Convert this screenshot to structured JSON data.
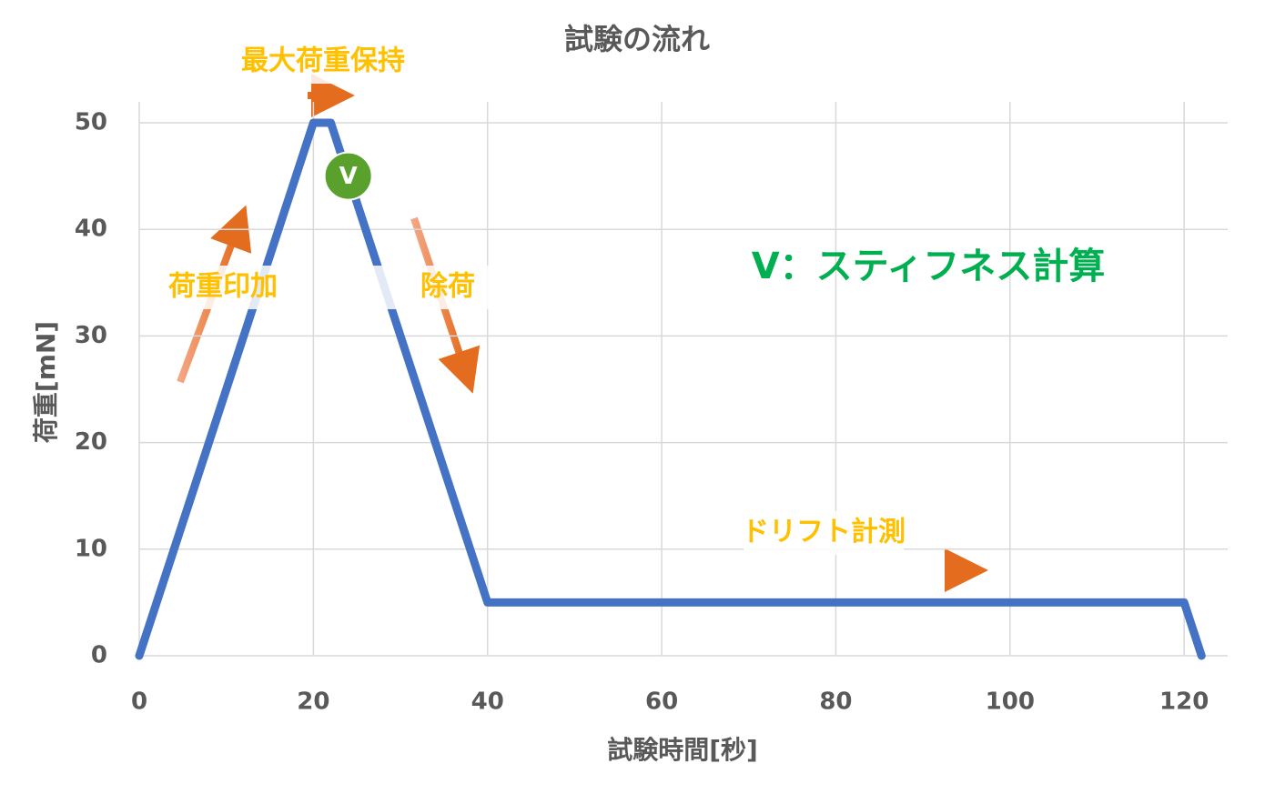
{
  "chart_data": {
    "type": "line",
    "title": "試験の流れ",
    "x_label": "試験時間[秒]",
    "y_label": "荷重[mN]",
    "x": [
      0,
      20,
      22,
      40,
      120,
      122
    ],
    "series": [
      {
        "color": "#4472c4",
        "values": [
          0,
          50,
          50,
          5,
          5,
          0
        ]
      }
    ],
    "xlim": [
      0,
      125
    ],
    "xticks": [
      0,
      20,
      40,
      60,
      80,
      100,
      120
    ],
    "ylim": [
      0,
      50
    ],
    "yticks": [
      0,
      10,
      20,
      30,
      40,
      50
    ],
    "grid": true,
    "marker": {
      "label": "V",
      "x": 24,
      "y": 45,
      "color": "#5aa02c"
    },
    "annotations": [
      "最大荷重保持",
      "荷重印加",
      "除荷",
      "ドリフト計測"
    ],
    "legend_note": "V：スティフネス計算"
  }
}
